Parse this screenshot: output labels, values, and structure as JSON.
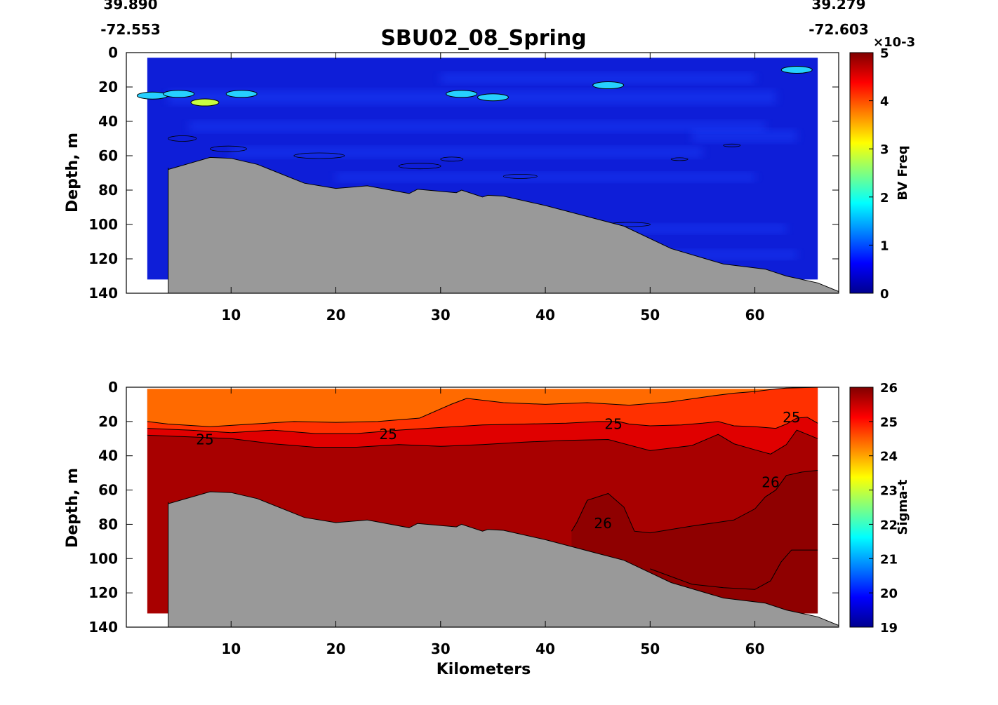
{
  "figure": {
    "title": "SBU02_08_Spring",
    "start_lat": "39.890",
    "start_lon": "-72.553",
    "end_lat": "39.279",
    "end_lon": "-72.603",
    "xlabel": "Kilometers"
  },
  "chart_data": [
    {
      "type": "heatmap",
      "variable": "BV Freq",
      "xlabel": "",
      "ylabel": "Depth, m",
      "xlim": [
        0,
        68
      ],
      "ylim": [
        140,
        0
      ],
      "x_ticks": [
        "10",
        "20",
        "30",
        "40",
        "50",
        "60"
      ],
      "y_ticks": [
        "0",
        "20",
        "40",
        "60",
        "80",
        "100",
        "120",
        "140"
      ],
      "colorbar": {
        "label": "BV Freq",
        "range": [
          0,
          5
        ],
        "ticks": [
          "0",
          "1",
          "2",
          "3",
          "4",
          "5"
        ],
        "exponent": "×10-3",
        "colormap": [
          "#00008f",
          "#0000ff",
          "#00ffff",
          "#ffff00",
          "#ff0000",
          "#800000"
        ]
      },
      "data_extent": {
        "x": [
          2,
          66
        ],
        "depth": [
          3,
          132
        ]
      },
      "dominant_value": 0.3,
      "colors": {
        "field": "#0e1ed8",
        "field_light": "#1e44ff",
        "patch": "#26d0ff",
        "patch_high": "#c8ff40",
        "bathymetry": "#999999"
      },
      "high_patches": [
        {
          "x": 2.5,
          "depth": 25,
          "value": 2.2
        },
        {
          "x": 5,
          "depth": 24,
          "value": 2.0
        },
        {
          "x": 7.5,
          "depth": 29,
          "value": 3.0
        },
        {
          "x": 11,
          "depth": 24,
          "value": 2.2
        },
        {
          "x": 32,
          "depth": 24,
          "value": 1.6
        },
        {
          "x": 35,
          "depth": 26,
          "value": 1.8
        },
        {
          "x": 46,
          "depth": 19,
          "value": 1.5
        },
        {
          "x": 64,
          "depth": 10,
          "value": 1.5
        }
      ],
      "bathymetry": {
        "x": [
          4,
          4,
          8,
          10,
          12.5,
          17,
          20,
          23,
          27,
          27.8,
          31.5,
          32,
          34,
          34.5,
          36,
          40,
          45,
          47.5,
          52,
          57,
          61,
          63,
          66,
          68
        ],
        "depth": [
          67,
          68,
          61,
          61.5,
          65,
          76,
          79,
          77.5,
          82,
          79.5,
          81.5,
          80,
          84,
          83,
          83.5,
          89,
          97,
          101,
          114,
          123,
          126,
          130,
          134,
          139
        ]
      }
    },
    {
      "type": "heatmap",
      "variable": "Sigma-t",
      "xlabel": "Kilometers",
      "ylabel": "Depth, m",
      "xlim": [
        0,
        68
      ],
      "ylim": [
        140,
        0
      ],
      "x_ticks": [
        "10",
        "20",
        "30",
        "40",
        "50",
        "60"
      ],
      "y_ticks": [
        "0",
        "20",
        "40",
        "60",
        "80",
        "100",
        "120",
        "140"
      ],
      "colorbar": {
        "label": "Sigma-t",
        "range": [
          19,
          26
        ],
        "ticks": [
          "19",
          "20",
          "21",
          "22",
          "23",
          "24",
          "25",
          "26"
        ],
        "colormap": [
          "#00008f",
          "#0000ff",
          "#00ffff",
          "#ffff00",
          "#ff0000",
          "#800000"
        ]
      },
      "data_extent": {
        "x": [
          2,
          66
        ],
        "depth": [
          1,
          132
        ]
      },
      "colors": {
        "surface": "#ff6a00",
        "upper_mid": "#ff3000",
        "mid": "#e00000",
        "deep": "#a80000",
        "deepest": "#8f0000",
        "bathymetry": "#999999"
      },
      "contours": [
        {
          "level": 24.5,
          "x": [
            2,
            4,
            8,
            12,
            16,
            20,
            24,
            28,
            31,
            32.5,
            36,
            40,
            44,
            48,
            52,
            56,
            58,
            60,
            62,
            63,
            66
          ],
          "depth": [
            20,
            21.5,
            23,
            21.5,
            20,
            20.5,
            20,
            18,
            10,
            6.5,
            9,
            10,
            9,
            10.5,
            8.5,
            5,
            3.5,
            2.5,
            1,
            0.5,
            0
          ]
        },
        {
          "level": 25,
          "x": [
            2,
            4,
            6,
            10,
            14,
            18,
            22,
            26,
            30,
            34,
            38,
            42,
            45,
            47,
            48,
            50,
            53,
            55,
            56.5,
            58,
            60,
            62,
            63,
            64,
            65,
            66
          ],
          "depth": [
            24,
            24.5,
            25,
            26.5,
            25,
            27,
            27,
            25,
            23.5,
            22,
            21.5,
            21,
            20,
            20,
            21.5,
            22.5,
            22,
            21,
            20,
            22.5,
            23,
            24,
            21.5,
            18,
            17.5,
            21
          ]
        },
        {
          "level": 25.5,
          "x": [
            2,
            6,
            10,
            14,
            18,
            22,
            26,
            30,
            34,
            38,
            42,
            46,
            50,
            54,
            56.5,
            58,
            60,
            61.5,
            63,
            64,
            66
          ],
          "depth": [
            28,
            29,
            30,
            33,
            35,
            35,
            33.5,
            34.5,
            33.5,
            32,
            31,
            30.5,
            37,
            34,
            27.5,
            33,
            36.5,
            39,
            33.5,
            25,
            30
          ]
        },
        {
          "level": 26,
          "x": [
            42.5,
            43,
            44,
            46,
            47.5,
            48.5,
            50,
            54,
            58,
            60,
            61,
            62,
            63,
            64.5,
            66
          ],
          "depth": [
            84,
            79,
            66,
            62,
            70,
            84,
            85,
            81,
            77.5,
            71,
            64,
            60,
            51.5,
            49.5,
            48.5
          ]
        },
        {
          "level": 26,
          "x": [
            50,
            54,
            57,
            60,
            61.5,
            62.5,
            63.5,
            64.5,
            66
          ],
          "depth": [
            106,
            115,
            117,
            118,
            113,
            102,
            95,
            95,
            95
          ]
        }
      ],
      "contour_labels": [
        {
          "text": "25",
          "x": 7.5,
          "depth": 30.5
        },
        {
          "text": "25",
          "x": 25,
          "depth": 27.5
        },
        {
          "text": "25",
          "x": 46.5,
          "depth": 21.5
        },
        {
          "text": "25",
          "x": 63.5,
          "depth": 17.5
        },
        {
          "text": "26",
          "x": 45.5,
          "depth": 79.5
        },
        {
          "text": "26",
          "x": 61.5,
          "depth": 55.5
        }
      ],
      "bathymetry": {
        "x": [
          4,
          4,
          8,
          10,
          12.5,
          17,
          20,
          23,
          27,
          27.8,
          31.5,
          32,
          34,
          34.5,
          36,
          40,
          45,
          47.5,
          52,
          57,
          61,
          63,
          66,
          68
        ],
        "depth": [
          67,
          68,
          61,
          61.5,
          65,
          76,
          79,
          77.5,
          82,
          79.5,
          81.5,
          80,
          84,
          83,
          83.5,
          89,
          97,
          101,
          114,
          123,
          126,
          130,
          134,
          139
        ]
      }
    }
  ]
}
